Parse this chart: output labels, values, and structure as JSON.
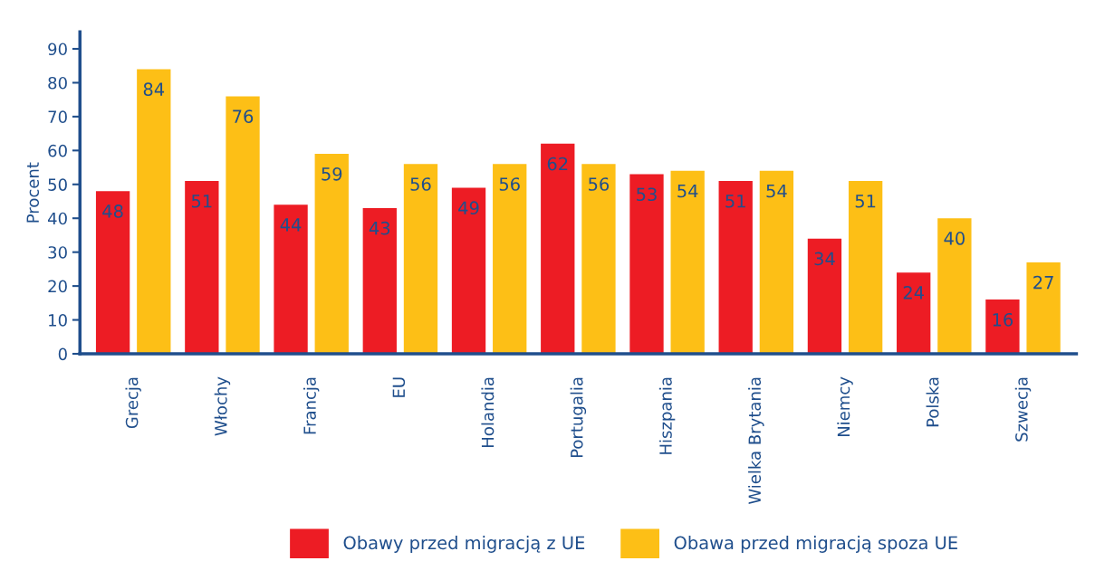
{
  "chart_data": {
    "type": "bar",
    "ylabel": "Procent",
    "categories": [
      "Grecja",
      "Włochy",
      "Francja",
      "EU",
      "Holandia",
      "Portugalia",
      "Hiszpania",
      "Wielka Brytania",
      "Niemcy",
      "Polska",
      "Szwecja"
    ],
    "series": [
      {
        "name": "Obawy przed migracją z UE",
        "color": "#ed1c24",
        "values": [
          48,
          51,
          44,
          43,
          49,
          62,
          53,
          51,
          34,
          24,
          16
        ]
      },
      {
        "name": "Obawa przed migracją spoza UE",
        "color": "#fdbf16",
        "values": [
          84,
          76,
          59,
          56,
          56,
          56,
          54,
          54,
          51,
          40,
          27
        ]
      }
    ],
    "ylim": [
      0,
      95
    ],
    "yticks": [
      0,
      10,
      20,
      30,
      40,
      50,
      60,
      70,
      80,
      90
    ],
    "grid": false,
    "legend": "bottom",
    "data_labels": true
  }
}
